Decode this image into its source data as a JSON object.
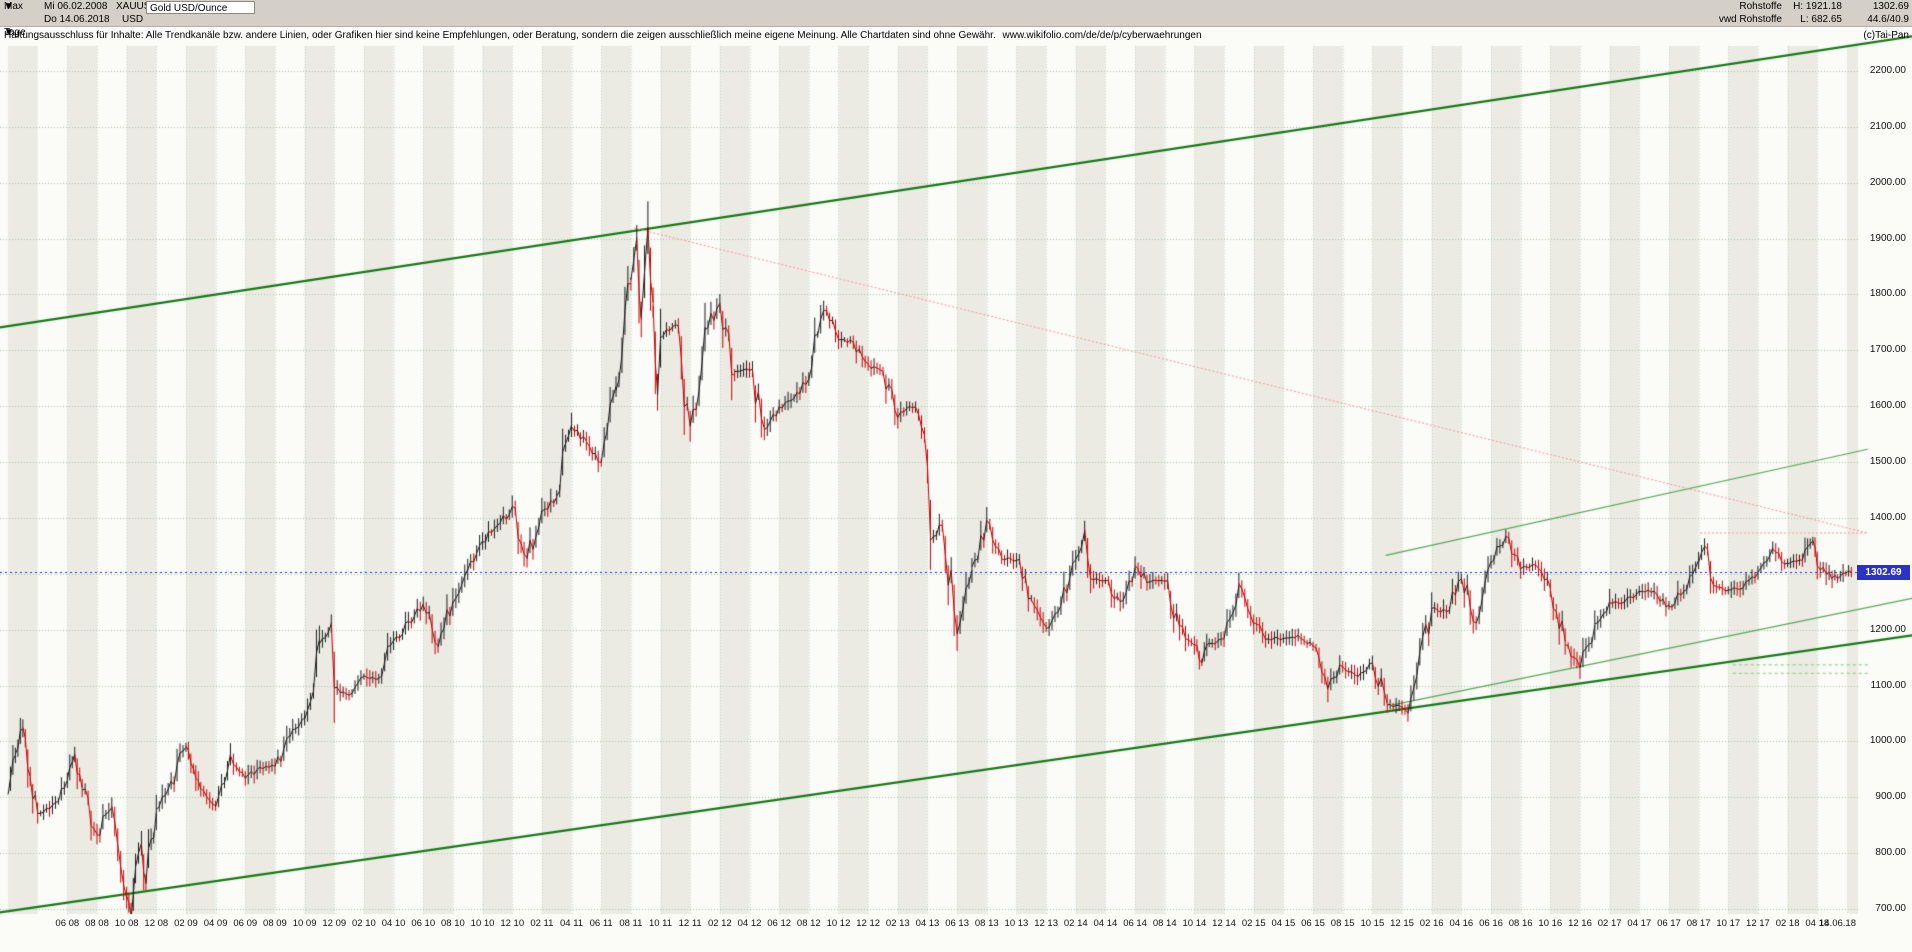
{
  "header": {
    "range_button": "Max",
    "period_button": "Tage",
    "dropdown_icon": "▼",
    "start_date": "Mi 06.02.2008",
    "end_date": "Do 14.06.2018",
    "symbol": "XAUUSD",
    "currency": "USD",
    "instrument": "Gold USD/Ounce",
    "right": {
      "market": "Rohstoffe",
      "source": "vwd Rohstoffe",
      "high": "H: 1921.18",
      "low": "L: 682.65",
      "last": "1302.69",
      "ratio": "44.6/40.9",
      "copyright": "(c)Tai-Pan"
    }
  },
  "disclaimer": {
    "text": "Haftungsausschluss für Inhalte: Alle Trendkanäle bzw. andere Linien, oder Grafiken hier sind keine Empfehlungen, oder Beratung, sondern die zeigen ausschließlich meine eigene Meinung. Alle Chartdaten sind ohne Gewähr.",
    "link": "www.wikifolio.com/de/de/p/cyberwaehrungen"
  },
  "price_badge": "1302.69",
  "chart_data": {
    "type": "line",
    "title": "Gold USD/Ounce",
    "symbol": "XAUUSD",
    "ylabel": "USD",
    "ylim": [
      700,
      2200
    ],
    "grid": true,
    "x_unit": "months since 2008-02",
    "x_tick_start_month_offset": 4,
    "x_tick_step_months": 2,
    "x_tick_labels": [
      "06 08",
      "08 08",
      "10 08",
      "12 08",
      "02 09",
      "04 09",
      "06 09",
      "08 09",
      "10 09",
      "12 09",
      "02 10",
      "04 10",
      "06 10",
      "08 10",
      "10 10",
      "12 10",
      "02 11",
      "04 11",
      "06 11",
      "08 11",
      "10 11",
      "12 11",
      "02 12",
      "04 12",
      "06 12",
      "08 12",
      "10 12",
      "12 12",
      "02 13",
      "04 13",
      "06 13",
      "08 13",
      "10 13",
      "12 13",
      "02 14",
      "04 14",
      "06 14",
      "08 14",
      "10 14",
      "12 14",
      "02 15",
      "04 15",
      "06 15",
      "08 15",
      "10 15",
      "12 15",
      "02 16",
      "04 16",
      "06 16",
      "08 16",
      "10 16",
      "12 16",
      "02 17",
      "04 17",
      "06 17",
      "08 17",
      "10 17",
      "12 17",
      "02 18",
      "04 18"
    ],
    "x_end_label": "14.06.18",
    "y_tick_labels": [
      "2200.00",
      "2100.00",
      "2000.00",
      "1900.00",
      "1800.00",
      "1700.00",
      "1600.00",
      "1500.00",
      "1400.00",
      "1300.00",
      "1200.00",
      "1100.00",
      "1000.00",
      "900.00",
      "800.00",
      "700.00"
    ],
    "series": {
      "name": "XAUUSD daily close (sampled)",
      "high_of_period": 1921.18,
      "low_of_period": 682.65,
      "last": 1302.69,
      "points": [
        [
          0,
          905
        ],
        [
          0.5,
          978
        ],
        [
          1,
          1025
        ],
        [
          1.5,
          935
        ],
        [
          2,
          871
        ],
        [
          3,
          886
        ],
        [
          4,
          932
        ],
        [
          4.5,
          978
        ],
        [
          5,
          913
        ],
        [
          6,
          833
        ],
        [
          7,
          884
        ],
        [
          8,
          724
        ],
        [
          8.3,
          683
        ],
        [
          8.6,
          775
        ],
        [
          9,
          816
        ],
        [
          9.3,
          745
        ],
        [
          10,
          878
        ],
        [
          11,
          927
        ],
        [
          12,
          992
        ],
        [
          12.5,
          952
        ],
        [
          13,
          916
        ],
        [
          14,
          883
        ],
        [
          15,
          975
        ],
        [
          16,
          934
        ],
        [
          17,
          953
        ],
        [
          18,
          955
        ],
        [
          19,
          1008
        ],
        [
          20,
          1040
        ],
        [
          21,
          1175
        ],
        [
          21.8,
          1212
        ],
        [
          22,
          1096
        ],
        [
          23,
          1083
        ],
        [
          24,
          1118
        ],
        [
          25,
          1113
        ],
        [
          26,
          1180
        ],
        [
          27,
          1215
        ],
        [
          28,
          1244
        ],
        [
          29,
          1169
        ],
        [
          30,
          1248
        ],
        [
          31,
          1307
        ],
        [
          32,
          1357
        ],
        [
          33,
          1386
        ],
        [
          34,
          1421
        ],
        [
          35,
          1327
        ],
        [
          36,
          1411
        ],
        [
          37,
          1439
        ],
        [
          38,
          1563
        ],
        [
          39,
          1536
        ],
        [
          40,
          1500
        ],
        [
          41,
          1628
        ],
        [
          42,
          1826
        ],
        [
          42.4,
          1898
        ],
        [
          42.7,
          1760
        ],
        [
          43.15,
          1920
        ],
        [
          43.5,
          1780
        ],
        [
          43.8,
          1620
        ],
        [
          44,
          1722
        ],
        [
          45,
          1746
        ],
        [
          46,
          1564
        ],
        [
          47,
          1737
        ],
        [
          48,
          1784
        ],
        [
          49,
          1662
        ],
        [
          50,
          1664
        ],
        [
          51,
          1558
        ],
        [
          52,
          1598
        ],
        [
          53,
          1614
        ],
        [
          54,
          1648
        ],
        [
          55,
          1772
        ],
        [
          56,
          1719
        ],
        [
          57,
          1715
        ],
        [
          58,
          1675
        ],
        [
          59,
          1662
        ],
        [
          60,
          1580
        ],
        [
          61,
          1598
        ],
        [
          61.8,
          1545
        ],
        [
          62.2,
          1360
        ],
        [
          63,
          1387
        ],
        [
          64,
          1192
        ],
        [
          65,
          1313
        ],
        [
          66,
          1395
        ],
        [
          67,
          1327
        ],
        [
          68,
          1324
        ],
        [
          69,
          1253
        ],
        [
          70,
          1202
        ],
        [
          71,
          1244
        ],
        [
          72,
          1326
        ],
        [
          72.6,
          1380
        ],
        [
          73,
          1291
        ],
        [
          74,
          1288
        ],
        [
          75,
          1250
        ],
        [
          76,
          1315
        ],
        [
          77,
          1285
        ],
        [
          78,
          1287
        ],
        [
          79,
          1208
        ],
        [
          80,
          1173
        ],
        [
          80.5,
          1140
        ],
        [
          81,
          1175
        ],
        [
          82,
          1184
        ],
        [
          83,
          1283
        ],
        [
          84,
          1213
        ],
        [
          85,
          1183
        ],
        [
          86,
          1184
        ],
        [
          87,
          1190
        ],
        [
          88,
          1171
        ],
        [
          89,
          1095
        ],
        [
          90,
          1134
        ],
        [
          91,
          1115
        ],
        [
          92,
          1142
        ],
        [
          93,
          1065
        ],
        [
          94,
          1061
        ],
        [
          94.4,
          1050
        ],
        [
          95,
          1118
        ],
        [
          96,
          1238
        ],
        [
          97,
          1232
        ],
        [
          98,
          1293
        ],
        [
          99,
          1212
        ],
        [
          100,
          1320
        ],
        [
          101,
          1367
        ],
        [
          102,
          1309
        ],
        [
          103,
          1316
        ],
        [
          104,
          1272
        ],
        [
          105,
          1173
        ],
        [
          106,
          1131
        ],
        [
          107,
          1211
        ],
        [
          108,
          1248
        ],
        [
          109,
          1249
        ],
        [
          110,
          1268
        ],
        [
          111,
          1269
        ],
        [
          112,
          1242
        ],
        [
          113,
          1269
        ],
        [
          114,
          1321
        ],
        [
          114.4,
          1350
        ],
        [
          115,
          1280
        ],
        [
          116,
          1271
        ],
        [
          117,
          1275
        ],
        [
          118,
          1303
        ],
        [
          119,
          1345
        ],
        [
          120,
          1318
        ],
        [
          121,
          1325
        ],
        [
          121.7,
          1360
        ],
        [
          122,
          1315
        ],
        [
          123,
          1292
        ],
        [
          124.3,
          1302.69
        ]
      ]
    },
    "levels": [
      {
        "name": "last-price-line",
        "price": 1302.69,
        "label": "1302.69",
        "color": "#2b32c8",
        "style": "dotted"
      }
    ],
    "trendlines": [
      {
        "name": "upper-channel",
        "color": "#157a15",
        "width": 2.2,
        "dash": null,
        "t1": -0.54,
        "p1": 1741,
        "t2": 128.4,
        "p2": 2262
      },
      {
        "name": "lower-channel",
        "color": "#157a15",
        "width": 2.2,
        "dash": null,
        "t1": -0.54,
        "p1": 694,
        "t2": 128.4,
        "p2": 1190
      },
      {
        "name": "inner-uptrend-support",
        "color": "#55a855",
        "width": 1.2,
        "dash": null,
        "t1": 93.3,
        "p1": 1065,
        "t2": 128.4,
        "p2": 1256
      },
      {
        "name": "inner-uptrend-resistance",
        "color": "#55a855",
        "width": 1.2,
        "dash": null,
        "t1": 92.9,
        "p1": 1333,
        "t2": 125.4,
        "p2": 1523
      },
      {
        "name": "downtrend-from-2011-high",
        "color": "#ff9494",
        "width": 1,
        "dash": [
          2,
          2
        ],
        "t1": 42.2,
        "p1": 1919,
        "t2": 125.4,
        "p2": 1373
      },
      {
        "name": "resistance-level",
        "color": "#ff9494",
        "width": 1,
        "dash": [
          2,
          2
        ],
        "t1": 114.1,
        "p1": 1373,
        "t2": 125.4,
        "p2": 1373
      },
      {
        "name": "support-level-1",
        "color": "#7ecb7e",
        "width": 1,
        "dash": [
          3,
          3
        ],
        "t1": 116.3,
        "p1": 1137,
        "t2": 125.5,
        "p2": 1137
      },
      {
        "name": "support-level-2",
        "color": "#7ecb7e",
        "width": 1,
        "dash": [
          3,
          3
        ],
        "t1": 116.3,
        "p1": 1122,
        "t2": 125.5,
        "p2": 1122
      }
    ],
    "colors": {
      "up": "#1a1a1a",
      "down": "#c40000",
      "channel": "#157a15",
      "thin_green": "#55a855",
      "red_dotted": "#ff9494",
      "grid": "#9ccf9c",
      "band": "#ebebe4",
      "bg": "#fbfbf8",
      "level_blue": "#2b32c8"
    }
  }
}
